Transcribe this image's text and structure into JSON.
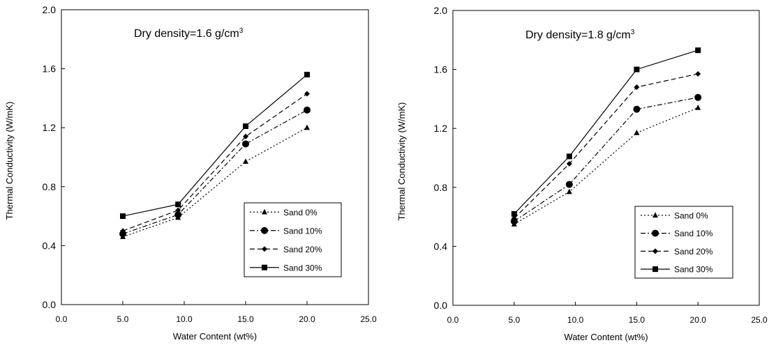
{
  "chart_data": [
    {
      "type": "line",
      "title_parts": [
        "Dry  density=1.6 g/cm",
        "3"
      ],
      "xlabel": "Water Content (wt%)",
      "ylabel": "Thermal Conductivity (W/mK)",
      "xlim": [
        0,
        25
      ],
      "ylim": [
        0,
        2
      ],
      "x_ticks": [
        "0.0",
        "5.0",
        "10.0",
        "15.0",
        "20.0",
        "25.0"
      ],
      "y_ticks": [
        "0.0",
        "0.4",
        "0.8",
        "1.2",
        "1.6",
        "2.0"
      ],
      "grid": false,
      "legend_position": "bottom-right",
      "x": [
        5.0,
        9.5,
        15.0,
        20.0
      ],
      "series": [
        {
          "name": "Sand 0%",
          "values": [
            0.46,
            0.59,
            0.97,
            1.2
          ],
          "marker": "triangle",
          "dash": "dotted"
        },
        {
          "name": "Sand 10%",
          "values": [
            0.48,
            0.61,
            1.09,
            1.32
          ],
          "marker": "circle",
          "dash": "dashdot"
        },
        {
          "name": "Sand 20%",
          "values": [
            0.5,
            0.64,
            1.14,
            1.43
          ],
          "marker": "diamond",
          "dash": "dashed"
        },
        {
          "name": "Sand 30%",
          "values": [
            0.6,
            0.68,
            1.21,
            1.56
          ],
          "marker": "square",
          "dash": "solid"
        }
      ]
    },
    {
      "type": "line",
      "title_parts": [
        "Dry  density=1.8 g/cm",
        "3"
      ],
      "xlabel": "Water Content (wt%)",
      "ylabel": "Thermal Conductivity (W/mK)",
      "xlim": [
        0,
        25
      ],
      "ylim": [
        0,
        2
      ],
      "x_ticks": [
        "0.0",
        "5.0",
        "10.0",
        "15.0",
        "20.0",
        "25.0"
      ],
      "y_ticks": [
        "0.0",
        "0.4",
        "0.8",
        "1.2",
        "1.6",
        "2.0"
      ],
      "grid": false,
      "legend_position": "bottom-right",
      "x": [
        5.0,
        9.5,
        15.0,
        20.0
      ],
      "series": [
        {
          "name": "Sand 0%",
          "values": [
            0.55,
            0.77,
            1.17,
            1.34
          ],
          "marker": "triangle",
          "dash": "dotted"
        },
        {
          "name": "Sand 10%",
          "values": [
            0.57,
            0.82,
            1.33,
            1.41
          ],
          "marker": "circle",
          "dash": "dashdot"
        },
        {
          "name": "Sand 20%",
          "values": [
            0.59,
            0.96,
            1.48,
            1.57
          ],
          "marker": "diamond",
          "dash": "dashed"
        },
        {
          "name": "Sand 30%",
          "values": [
            0.62,
            1.01,
            1.6,
            1.73
          ],
          "marker": "square",
          "dash": "solid"
        }
      ]
    }
  ]
}
